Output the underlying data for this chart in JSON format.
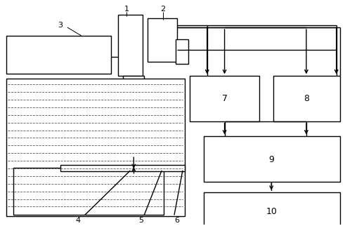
{
  "bg_color": "#ffffff",
  "lc": "#000000",
  "lw": 1.0,
  "fs": 8,
  "water_dash_color": "#555555",
  "water_dash_lw": 0.6
}
